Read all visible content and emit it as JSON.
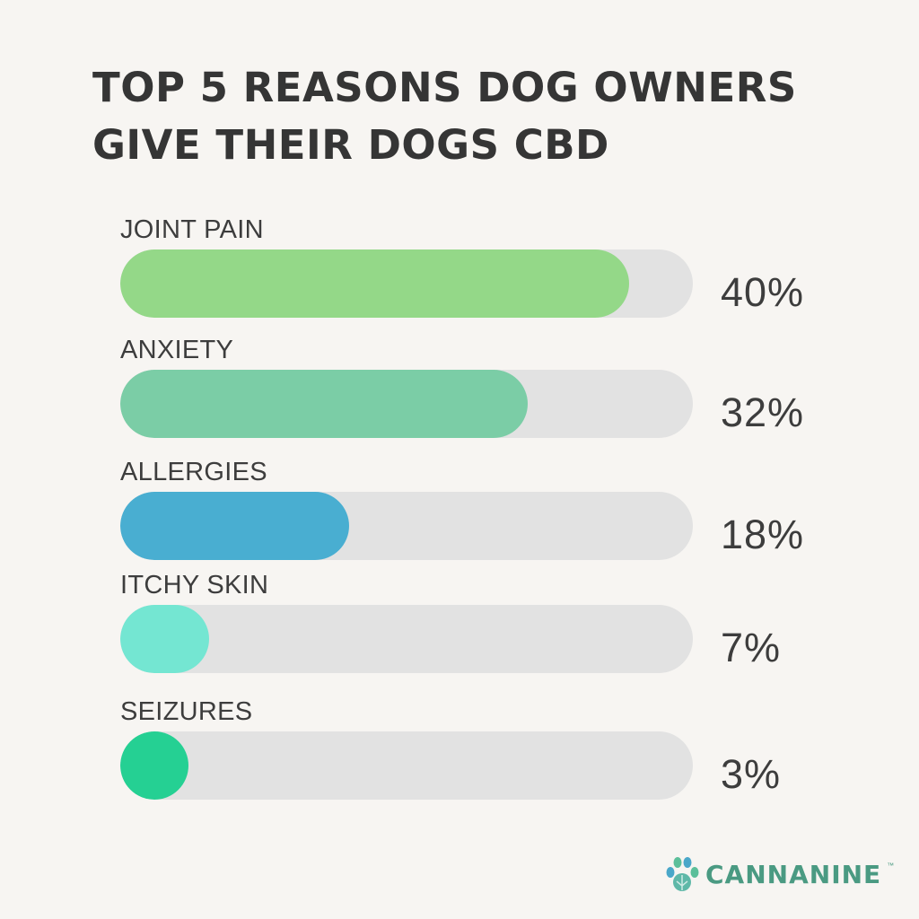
{
  "chart_data": {
    "type": "bar",
    "orientation": "horizontal",
    "title_lines": [
      "TOP 5 REASONS DOG OWNERS",
      "GIVE THEIR DOGS CBD"
    ],
    "categories": [
      "JOINT PAIN",
      "ANXIETY",
      "ALLERGIES",
      "ITCHY SKIN",
      "SEIZURES"
    ],
    "values": [
      40,
      32,
      18,
      7,
      3
    ],
    "value_labels": [
      "40%",
      "32%",
      "18%",
      "7%",
      "3%"
    ],
    "colors": [
      "#94d888",
      "#7bcda6",
      "#49aed1",
      "#74e6d2",
      "#25d093"
    ],
    "xlim": [
      0,
      45
    ],
    "track_color": "#e2e2e2",
    "grid": false,
    "legend": "none"
  },
  "brand": {
    "name": "CANNANINE",
    "tm": "™",
    "icon": "paw-icon",
    "color": "#4a9a82"
  }
}
